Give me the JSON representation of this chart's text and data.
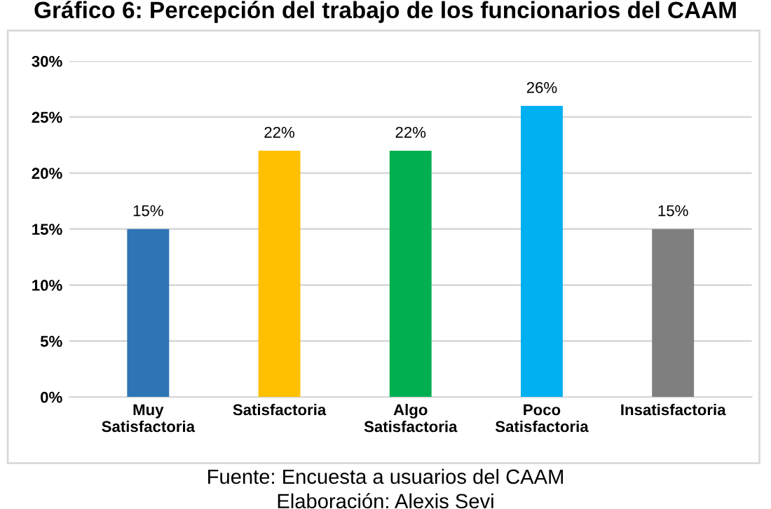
{
  "chart_data": {
    "type": "bar",
    "title": "Gráfico 6: Percepción del trabajo de los funcionarios del CAAM",
    "categories": [
      "Muy\nSatisfactoria",
      "Satisfactoria",
      "Algo\nSatisfactoria",
      "Poco\nSatisfactoria",
      "Insatisfactoria"
    ],
    "values": [
      15,
      22,
      22,
      26,
      15
    ],
    "value_labels": [
      "15%",
      "22%",
      "22%",
      "26%",
      "15%"
    ],
    "colors": [
      "#2e75b6",
      "#ffc000",
      "#00b050",
      "#00b0f0",
      "#7f7f7f"
    ],
    "ylim": [
      0,
      30
    ],
    "yticks": [
      {
        "value": 0,
        "label": "0%"
      },
      {
        "value": 5,
        "label": "5%"
      },
      {
        "value": 10,
        "label": "10%"
      },
      {
        "value": 15,
        "label": "15%"
      },
      {
        "value": 20,
        "label": "20%"
      },
      {
        "value": 25,
        "label": "25%"
      },
      {
        "value": 30,
        "label": "30%"
      }
    ],
    "grid": "y",
    "annotations": [
      "Fuente: Encuesta a usuarios del CAAM",
      "Elaboración: Alexis Sevi"
    ]
  }
}
